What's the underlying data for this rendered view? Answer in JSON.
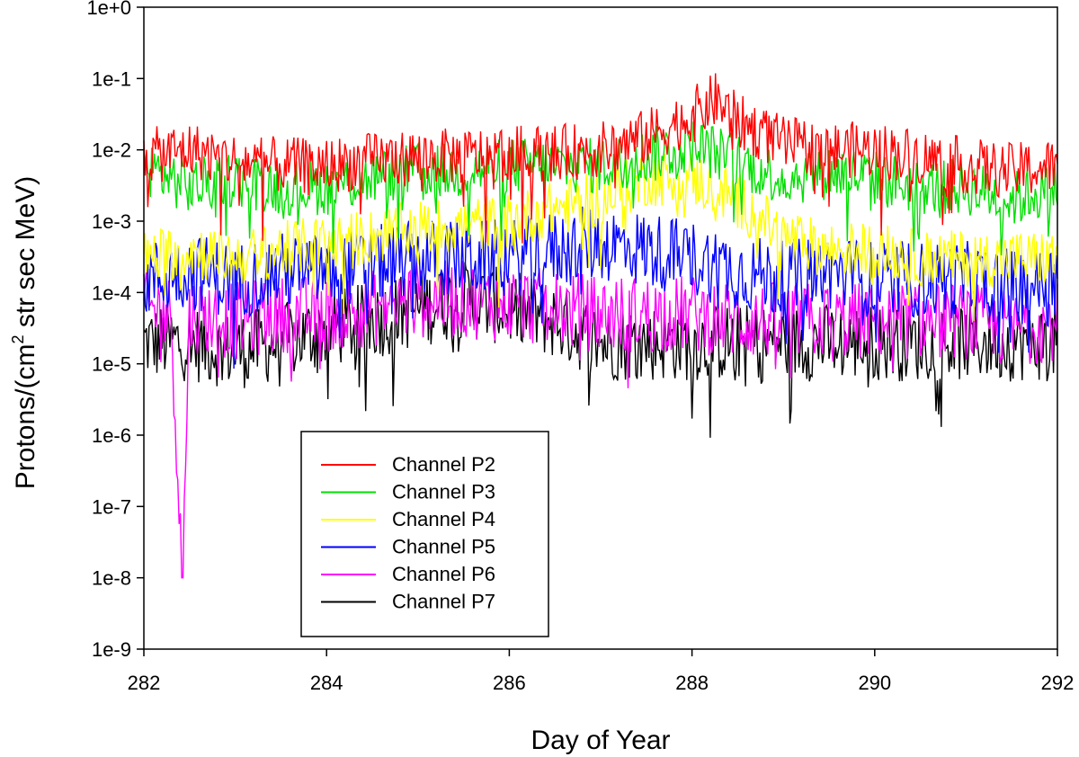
{
  "chart_data": {
    "type": "line",
    "xlabel": "Day of Year",
    "ylabel": "Protons/(cm² str sec MeV)",
    "ylabel_parts": {
      "before": "Protons/(cm",
      "sup": "2",
      "after": " str sec MeV)"
    },
    "y_scale": "log",
    "xlim": [
      282,
      292
    ],
    "ylim": [
      1e-09,
      1
    ],
    "x_ticks": [
      {
        "value": 282,
        "label": "282"
      },
      {
        "value": 284,
        "label": "284"
      },
      {
        "value": 286,
        "label": "286"
      },
      {
        "value": 288,
        "label": "288"
      },
      {
        "value": 290,
        "label": "290"
      },
      {
        "value": 292,
        "label": "292"
      }
    ],
    "y_ticks": [
      {
        "value": 1,
        "label": "1e+0"
      },
      {
        "value": 0.1,
        "label": "1e-1"
      },
      {
        "value": 0.01,
        "label": "1e-2"
      },
      {
        "value": 0.001,
        "label": "1e-3"
      },
      {
        "value": 0.0001,
        "label": "1e-4"
      },
      {
        "value": 1e-05,
        "label": "1e-5"
      },
      {
        "value": 1e-06,
        "label": "1e-6"
      },
      {
        "value": 1e-07,
        "label": "1e-7"
      },
      {
        "value": 1e-08,
        "label": "1e-8"
      },
      {
        "value": 1e-09,
        "label": "1e-9"
      }
    ],
    "grid": false,
    "legend_position": "lower-left",
    "series": [
      {
        "name": "Channel P2",
        "color": "#ff0000",
        "x": [
          282.0,
          282.5,
          283.0,
          283.5,
          284.0,
          284.5,
          285.0,
          285.5,
          286.0,
          286.5,
          287.0,
          287.5,
          288.0,
          288.25,
          288.5,
          289.0,
          289.5,
          290.0,
          290.5,
          291.0,
          291.5,
          292.0
        ],
        "y": [
          0.008,
          0.01,
          0.007,
          0.006,
          0.006,
          0.007,
          0.008,
          0.008,
          0.009,
          0.009,
          0.01,
          0.015,
          0.03,
          0.05,
          0.025,
          0.012,
          0.01,
          0.01,
          0.008,
          0.006,
          0.005,
          0.006
        ]
      },
      {
        "name": "Channel P3",
        "color": "#00e000",
        "x": [
          282.0,
          282.5,
          283.0,
          283.5,
          284.0,
          284.5,
          285.0,
          285.5,
          286.0,
          286.5,
          287.0,
          287.5,
          288.0,
          288.5,
          289.0,
          289.5,
          290.0,
          290.5,
          291.0,
          291.5,
          292.0
        ],
        "y": [
          0.006,
          0.003,
          0.004,
          0.003,
          0.003,
          0.004,
          0.005,
          0.005,
          0.006,
          0.006,
          0.006,
          0.008,
          0.012,
          0.007,
          0.004,
          0.005,
          0.004,
          0.003,
          0.003,
          0.002,
          0.003
        ]
      },
      {
        "name": "Channel P4",
        "color": "#ffff00",
        "x": [
          282.0,
          282.5,
          283.0,
          283.5,
          284.0,
          284.5,
          285.0,
          285.5,
          286.0,
          286.5,
          287.0,
          287.5,
          288.0,
          288.5,
          289.0,
          289.5,
          290.0,
          290.5,
          291.0,
          291.5,
          292.0
        ],
        "y": [
          0.0003,
          0.0004,
          0.0003,
          0.0004,
          0.0005,
          0.0006,
          0.0008,
          0.0009,
          0.001,
          0.0015,
          0.002,
          0.004,
          0.004,
          0.002,
          0.0006,
          0.0004,
          0.0004,
          0.0003,
          0.0003,
          0.0003,
          0.0003
        ]
      },
      {
        "name": "Channel P5",
        "color": "#0000ff",
        "x": [
          282.0,
          282.5,
          283.0,
          283.5,
          284.0,
          284.5,
          285.0,
          285.5,
          286.0,
          286.5,
          287.0,
          287.5,
          288.0,
          288.5,
          289.0,
          289.5,
          290.0,
          290.5,
          291.0,
          291.5,
          292.0
        ],
        "y": [
          0.00015,
          0.0002,
          0.00015,
          0.0002,
          0.0002,
          0.00025,
          0.0003,
          0.0003,
          0.0003,
          0.0004,
          0.0005,
          0.0004,
          0.0003,
          0.0002,
          0.00015,
          0.0002,
          0.00015,
          0.00015,
          0.00015,
          0.00012,
          0.00015
        ]
      },
      {
        "name": "Channel P6",
        "color": "#ff00ff",
        "x": [
          282.0,
          282.3,
          282.42,
          282.5,
          283.0,
          283.5,
          284.0,
          284.5,
          285.0,
          285.5,
          286.0,
          286.5,
          287.0,
          287.5,
          288.0,
          288.5,
          289.0,
          289.5,
          290.0,
          290.5,
          291.0,
          291.5,
          292.0
        ],
        "y": [
          6e-05,
          5e-05,
          1e-08,
          5e-05,
          4e-05,
          5e-05,
          5e-05,
          6e-05,
          8e-05,
          8e-05,
          7e-05,
          6e-05,
          5e-05,
          5e-05,
          5e-05,
          4e-05,
          4e-05,
          4e-05,
          4e-05,
          4e-05,
          4e-05,
          3e-05,
          4e-05
        ]
      },
      {
        "name": "Channel P7",
        "color": "#000000",
        "x": [
          282.0,
          282.5,
          283.0,
          283.5,
          284.0,
          284.5,
          285.0,
          285.5,
          286.0,
          286.5,
          287.0,
          287.5,
          288.0,
          288.5,
          289.0,
          289.5,
          290.0,
          290.5,
          291.0,
          291.5,
          292.0
        ],
        "y": [
          2e-05,
          2e-05,
          1.5e-05,
          2e-05,
          3e-05,
          4e-05,
          6e-05,
          8e-05,
          6e-05,
          4e-05,
          2e-05,
          2e-05,
          2e-05,
          2e-05,
          2e-05,
          2e-05,
          2e-05,
          2e-05,
          2e-05,
          2e-05,
          2e-05
        ]
      }
    ]
  }
}
